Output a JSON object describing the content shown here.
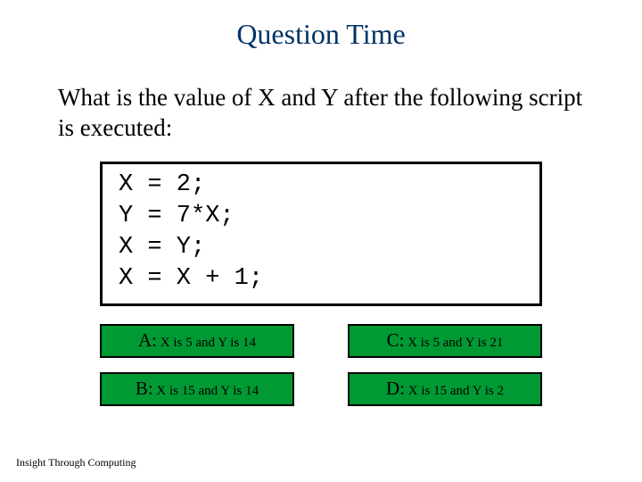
{
  "slide": {
    "title": "Question Time",
    "question": "What is the value of X and Y after the following script is executed:",
    "code_lines": [
      "X = 2;",
      "Y = 7*X;",
      "X = Y;",
      "X = X + 1;"
    ],
    "answers": {
      "a": {
        "label": "A:",
        "text": " X is 5 and Y is 14"
      },
      "b": {
        "label": "B:",
        "text": " X is 15 and Y is 14"
      },
      "c": {
        "label": "C:",
        "text": " X is 5 and Y is 21"
      },
      "d": {
        "label": "D:",
        "text": " X is 15 and Y is 2"
      }
    },
    "footer": "Insight Through Computing",
    "colors": {
      "title": "#003366",
      "answer_bg": "#009933",
      "border": "#000000",
      "background": "#ffffff"
    },
    "typography": {
      "title_fontsize": 32,
      "question_fontsize": 27,
      "code_fontsize": 27,
      "answer_label_fontsize": 21,
      "answer_text_fontsize": 15,
      "footer_fontsize": 12
    }
  }
}
